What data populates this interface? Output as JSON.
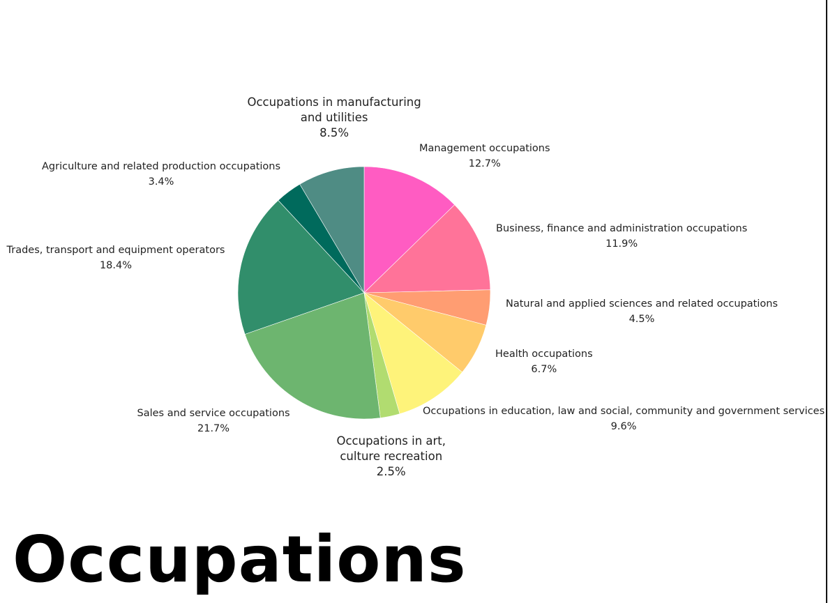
{
  "page": {
    "title": "Occupations"
  },
  "chart_data": {
    "type": "pie",
    "start_angle_deg": 0,
    "direction": "clockwise",
    "slices": [
      {
        "label": "Management occupations",
        "value": 12.7,
        "display": "12.7%",
        "color": "#ff5cc2"
      },
      {
        "label": "Business, finance and administration occupations",
        "value": 11.9,
        "display": "11.9%",
        "color": "#ff7399"
      },
      {
        "label": "Natural and applied sciences and related occupations",
        "value": 4.5,
        "display": "4.5%",
        "color": "#ff9d72"
      },
      {
        "label": "Health occupations",
        "value": 6.7,
        "display": "6.7%",
        "color": "#ffcb6b"
      },
      {
        "label": "Occupations in education, law and social, community and government services",
        "value": 9.6,
        "display": "9.6%",
        "color": "#fef37a"
      },
      {
        "label_lines": [
          "Occupations in art,",
          "culture recreation"
        ],
        "value": 2.5,
        "display": "2.5%",
        "color": "#b1dc70"
      },
      {
        "label": "Sales and service occupations",
        "value": 21.7,
        "display": "21.7%",
        "color": "#6db56f"
      },
      {
        "label": "Trades, transport and equipment operators",
        "value": 18.4,
        "display": "18.4%",
        "color": "#318e6b"
      },
      {
        "label": "Agriculture and related production occupations",
        "value": 3.4,
        "display": "3.4%",
        "color": "#006a5c"
      },
      {
        "label_lines": [
          "Occupations in manufacturing",
          "and utilities"
        ],
        "value": 8.5,
        "display": "8.5%",
        "color": "#4f8c84"
      }
    ]
  }
}
